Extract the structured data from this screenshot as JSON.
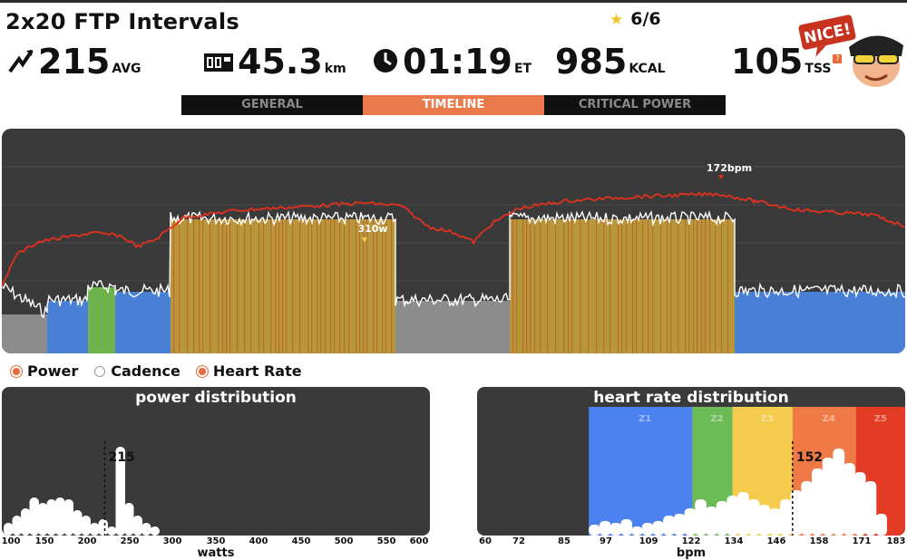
{
  "header": {
    "title": "2x20 FTP Intervals",
    "stars": "6/6",
    "badge": "NICE!"
  },
  "stats": {
    "power": {
      "value": "215",
      "unit": "AVG"
    },
    "distance": {
      "value": "45.3",
      "unit": "km"
    },
    "time": {
      "value": "01:19",
      "unit": "ET"
    },
    "calories": {
      "value": "985",
      "unit": "KCAL"
    },
    "tss": {
      "value": "105",
      "unit": "TSS",
      "help": "?"
    }
  },
  "tabs": [
    {
      "label": "GENERAL",
      "active": false
    },
    {
      "label": "TIMELINE",
      "active": true
    },
    {
      "label": "CRITICAL POWER",
      "active": false
    }
  ],
  "timeline": {
    "hr_peak_label": "172bpm",
    "power_peak_label": "310w"
  },
  "legend": [
    {
      "label": "Power",
      "color": "#e86a3d",
      "selected": true
    },
    {
      "label": "Cadence",
      "color": "#ffffff",
      "selected": false
    },
    {
      "label": "Heart Rate",
      "color": "#e86a3d",
      "selected": true
    }
  ],
  "colors": {
    "panel": "#3a3a3a",
    "accent": "#ea7a4c",
    "hr_line": "#e2311d",
    "zone_gray": "#8c8c8c",
    "zone_blue": "#4a7fd6",
    "zone_green": "#6db24a",
    "zone_gold": "#b8963a",
    "z1": "#4c82f0",
    "z2": "#6dbb56",
    "z3": "#f4cb4c",
    "z4": "#ef7a45",
    "z5": "#e33b24"
  },
  "power_distribution": {
    "title": "power distribution",
    "avg_label": "215",
    "avg": 215,
    "x_min": 100,
    "x_max": 600,
    "ticks": [
      "100",
      "150",
      "200",
      "250",
      "300",
      "350",
      "400",
      "450",
      "500",
      "550",
      "600"
    ],
    "xlabel": "watts"
  },
  "hr_distribution": {
    "title": "heart rate distribution",
    "avg_label": "152",
    "avg": 152,
    "x_min": 60,
    "x_max": 183,
    "ticks": [
      "60",
      "72",
      "85",
      "97",
      "109",
      "122",
      "134",
      "146",
      "158",
      "171",
      "183"
    ],
    "xlabel": "bpm",
    "zones": [
      {
        "name": "Z1",
        "from": 91,
        "to": 122
      },
      {
        "name": "Z2",
        "from": 122,
        "to": 134
      },
      {
        "name": "Z3",
        "from": 134,
        "to": 152
      },
      {
        "name": "Z4",
        "from": 152,
        "to": 171
      },
      {
        "name": "Z5",
        "from": 171,
        "to": 183
      }
    ]
  }
}
